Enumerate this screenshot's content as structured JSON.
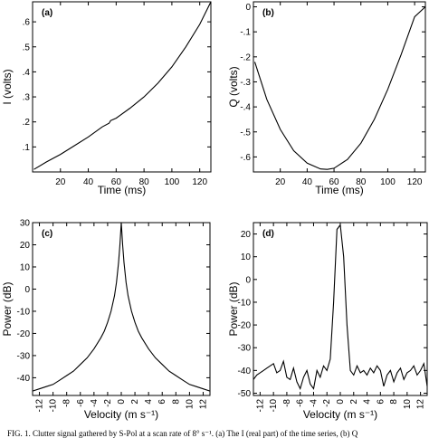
{
  "caption": "FIG. 1. Clutter signal gathered by S-Pol at a scan rate of 8° s⁻¹. (a) The I (real part) of the time series, (b) Q",
  "chart_data": [
    {
      "type": "line",
      "panel_label": "(a)",
      "xlabel": "Time (ms)",
      "ylabel": "I (volts)",
      "xlim": [
        0,
        128
      ],
      "ylim": [
        0,
        0.68
      ],
      "xticks": [
        20,
        40,
        60,
        80,
        100,
        120
      ],
      "xtick_labels": [
        "20",
        "40",
        "60",
        "80",
        "100",
        "120"
      ],
      "yticks": [
        0.1,
        0.2,
        0.3,
        0.4,
        0.5,
        0.6
      ],
      "ytick_labels": [
        ".1",
        ".2",
        ".3",
        ".4",
        ".5",
        ".6"
      ],
      "series": [
        {
          "x": [
            1,
            10,
            20,
            30,
            40,
            50,
            55,
            56,
            60,
            70,
            80,
            90,
            100,
            110,
            120,
            128
          ],
          "y": [
            0.01,
            0.04,
            0.07,
            0.105,
            0.14,
            0.18,
            0.195,
            0.205,
            0.215,
            0.255,
            0.3,
            0.355,
            0.42,
            0.5,
            0.59,
            0.68
          ]
        }
      ]
    },
    {
      "type": "line",
      "panel_label": "(b)",
      "xlabel": "Time (ms)",
      "ylabel": "Q (volts)",
      "xlim": [
        0,
        128
      ],
      "ylim": [
        -0.66,
        0.02
      ],
      "xticks": [
        20,
        40,
        60,
        80,
        100,
        120
      ],
      "xtick_labels": [
        "20",
        "40",
        "60",
        "80",
        "100",
        "120"
      ],
      "yticks": [
        0,
        -0.1,
        -0.2,
        -0.3,
        -0.4,
        -0.5,
        -0.6
      ],
      "ytick_labels": [
        "0",
        "-.1",
        "-.2",
        "-.3",
        "-.4",
        "-.5",
        "-.6"
      ],
      "series": [
        {
          "x": [
            1,
            10,
            20,
            30,
            40,
            50,
            55,
            60,
            70,
            80,
            90,
            100,
            110,
            120,
            128
          ],
          "y": [
            -0.22,
            -0.37,
            -0.49,
            -0.575,
            -0.625,
            -0.648,
            -0.65,
            -0.645,
            -0.61,
            -0.545,
            -0.45,
            -0.33,
            -0.19,
            -0.04,
            0.0
          ]
        }
      ]
    },
    {
      "type": "line",
      "panel_label": "(c)",
      "xlabel": "Velocity (m s⁻¹)",
      "ylabel": "Power (dB)",
      "xlim": [
        -13,
        13
      ],
      "ylim": [
        -48,
        30
      ],
      "xticks": [
        -12,
        -10,
        -8,
        -6,
        -4,
        -2,
        0,
        2,
        4,
        6,
        8,
        10,
        12
      ],
      "xtick_labels": [
        "-12",
        "-10",
        "-8",
        "-6",
        "-4",
        "-2",
        "0",
        "2",
        "4",
        "6",
        "8",
        "10",
        "12"
      ],
      "yticks": [
        -40,
        -30,
        -20,
        -10,
        0,
        10,
        20,
        30
      ],
      "ytick_labels": [
        "-40",
        "-30",
        "-20",
        "-10",
        "0",
        "10",
        "20",
        "30"
      ],
      "series": [
        {
          "x": [
            -13,
            -12,
            -11,
            -10,
            -9,
            -8,
            -7,
            -6,
            -5,
            -4,
            -3,
            -2.5,
            -2,
            -1.5,
            -1,
            -0.7,
            -0.4,
            -0.2,
            0,
            0.2,
            0.4,
            0.7,
            1,
            1.5,
            2,
            2.5,
            3,
            4,
            5,
            6,
            7,
            8,
            9,
            10,
            11,
            12,
            13
          ],
          "y": [
            -46,
            -45,
            -44,
            -43,
            -41,
            -39,
            -37,
            -34,
            -31,
            -27,
            -22,
            -19,
            -15,
            -10,
            -3,
            3,
            12,
            20,
            30,
            20,
            12,
            3,
            -3,
            -10,
            -15,
            -19,
            -22,
            -27,
            -31,
            -34,
            -37,
            -39,
            -41,
            -43,
            -44,
            -45,
            -46
          ]
        }
      ]
    },
    {
      "type": "line",
      "panel_label": "(d)",
      "xlabel": "Velocity (m s⁻¹)",
      "ylabel": "Power (dB)",
      "xlim": [
        -13,
        13
      ],
      "ylim": [
        -51,
        25
      ],
      "xticks": [
        -12,
        -10,
        -8,
        -6,
        -4,
        -2,
        0,
        2,
        4,
        6,
        8,
        10,
        12
      ],
      "xtick_labels": [
        "-12",
        "-10",
        "-8",
        "-6",
        "-4",
        "-2",
        "0",
        "2",
        "4",
        "6",
        "8",
        "10",
        "12"
      ],
      "yticks": [
        -50,
        -40,
        -30,
        -20,
        -10,
        0,
        10,
        20
      ],
      "ytick_labels": [
        "-50",
        "-40",
        "-30",
        "-20",
        "-10",
        "0",
        "10",
        "20"
      ],
      "series": [
        {
          "x": [
            -13,
            -12.5,
            -12,
            -11.5,
            -11,
            -10.5,
            -10,
            -9.5,
            -9,
            -8.5,
            -8,
            -7.5,
            -7,
            -6.5,
            -6,
            -5.5,
            -5,
            -4.5,
            -4,
            -3.5,
            -3,
            -2.5,
            -2,
            -1.5,
            -1,
            -0.5,
            0,
            0.5,
            1,
            1.5,
            2,
            2.5,
            3,
            3.5,
            4,
            4.5,
            5,
            5.5,
            6,
            6.5,
            7,
            7.5,
            8,
            8.5,
            9,
            9.5,
            10,
            10.5,
            11,
            11.5,
            12,
            12.5,
            13
          ],
          "y": [
            -44,
            -42,
            -41,
            -40,
            -39,
            -38,
            -37,
            -41,
            -40,
            -36,
            -43,
            -44,
            -39,
            -45,
            -48,
            -43,
            -40,
            -46,
            -48,
            -40,
            -43,
            -38,
            -40,
            -35,
            -10,
            22,
            24,
            10,
            -20,
            -40,
            -42,
            -38,
            -41,
            -40,
            -42,
            -39,
            -41,
            -38,
            -40,
            -47,
            -42,
            -40,
            -45,
            -41,
            -39,
            -44,
            -41,
            -40,
            -38,
            -42,
            -40,
            -37,
            -47
          ]
        }
      ]
    }
  ]
}
